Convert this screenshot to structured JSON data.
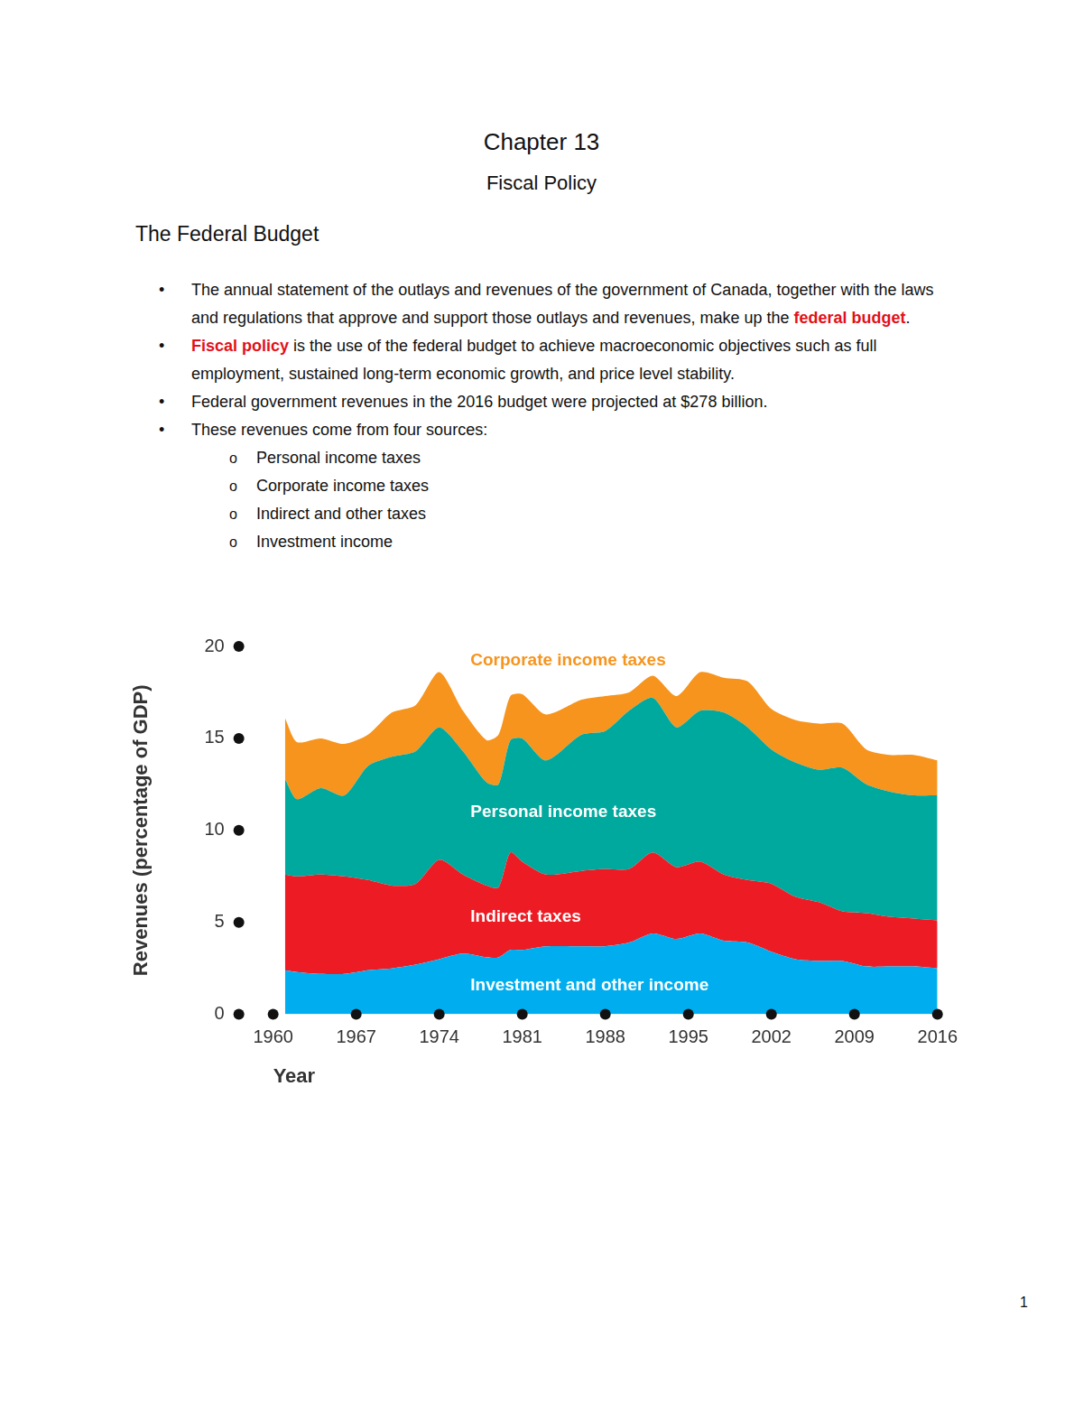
{
  "document": {
    "header": {
      "chapter": "Chapter 13",
      "subtitle": "Fiscal Policy"
    },
    "section": "The Federal Budget",
    "bullets": [
      {
        "before": "The annual statement of the outlays and revenues of the government of Canada, together with the laws and regulations that approve and support those outlays and revenues, make up the ",
        "term": "federal budget",
        "after": "."
      },
      {
        "before": "",
        "term": "Fiscal policy",
        "after": " is the use of the federal budget to achieve macroeconomic objectives such as full employment, sustained long-term economic growth, and price level stability."
      },
      {
        "before": "Federal government revenues in the 2016 budget were projected at $278 billion."
      },
      {
        "before": "These revenues come from four sources:",
        "items": [
          "Personal income taxes",
          "Corporate income taxes",
          "Indirect and other taxes",
          "Investment income"
        ]
      }
    ],
    "page_number": 1
  },
  "chart_data": {
    "type": "area",
    "stacked": true,
    "x_label": "Year",
    "y_label": "Revenues (percentage of GDP)",
    "x": [
      1961,
      1962,
      1964,
      1966,
      1968,
      1970,
      1972,
      1974,
      1976,
      1978,
      1979,
      1980,
      1981,
      1983,
      1986,
      1988,
      1990,
      1992,
      1994,
      1996,
      1998,
      2000,
      2002,
      2004,
      2006,
      2008,
      2010,
      2012,
      2014,
      2016
    ],
    "series": [
      {
        "name": "Investment and other income",
        "color": "#00aeef",
        "values": [
          2.4,
          2.3,
          2.2,
          2.2,
          2.4,
          2.5,
          2.7,
          3.0,
          3.3,
          3.1,
          3.1,
          3.5,
          3.5,
          3.7,
          3.7,
          3.7,
          3.9,
          4.4,
          4.1,
          4.4,
          4.0,
          3.9,
          3.4,
          3.0,
          2.9,
          2.9,
          2.6,
          2.6,
          2.6,
          2.5
        ]
      },
      {
        "name": "Indirect taxes",
        "color": "#ed1c24",
        "values": [
          5.2,
          5.2,
          5.4,
          5.3,
          4.9,
          4.5,
          4.4,
          5.4,
          4.3,
          3.9,
          3.8,
          5.3,
          4.8,
          3.9,
          4.1,
          4.2,
          4.0,
          4.4,
          3.9,
          3.9,
          3.6,
          3.4,
          3.7,
          3.4,
          3.2,
          2.7,
          2.9,
          2.7,
          2.6,
          2.6
        ]
      },
      {
        "name": "Personal income taxes",
        "color": "#00a99d",
        "values": [
          5.2,
          4.2,
          4.7,
          4.4,
          6.2,
          7.0,
          7.2,
          7.2,
          6.7,
          5.6,
          5.6,
          6.1,
          6.7,
          6.2,
          7.4,
          7.5,
          8.6,
          8.4,
          7.6,
          8.2,
          8.8,
          8.3,
          7.3,
          7.3,
          7.2,
          7.8,
          7.0,
          6.8,
          6.7,
          6.8
        ]
      },
      {
        "name": "Corporate income taxes",
        "color": "#f7941d",
        "values": [
          3.3,
          3.1,
          2.7,
          2.8,
          1.7,
          2.4,
          2.5,
          3.0,
          2.2,
          2.3,
          2.7,
          2.4,
          2.4,
          2.5,
          1.9,
          1.9,
          1.0,
          1.2,
          1.7,
          2.1,
          1.9,
          2.5,
          2.2,
          2.3,
          2.5,
          2.4,
          1.9,
          2.0,
          2.2,
          1.9
        ]
      }
    ],
    "xlim": [
      1960,
      2016
    ],
    "xticks": [
      1960,
      1967,
      1974,
      1981,
      1988,
      1995,
      2002,
      2009,
      2016
    ],
    "ylim": [
      0,
      20
    ],
    "yticks": [
      0,
      5,
      10,
      15,
      20
    ],
    "grid": false
  }
}
